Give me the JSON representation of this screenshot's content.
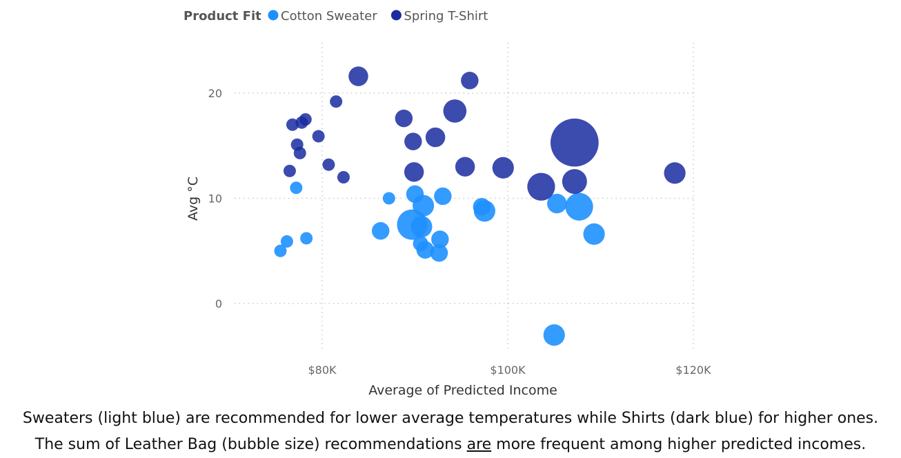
{
  "chart_data": {
    "type": "scatter",
    "legend": {
      "title": "Product Fit",
      "placement": "top-left",
      "entries": [
        {
          "name": "Cotton Sweater",
          "color": "#1E90FF"
        },
        {
          "name": "Spring T-Shirt",
          "color": "#1A2CA0"
        }
      ]
    },
    "xlabel": "Average of Predicted Income",
    "ylabel": "Avg °C",
    "xlim": [
      75000,
      121000
    ],
    "ylim": [
      -4.5,
      24
    ],
    "xticks": [
      80000,
      100000,
      120000
    ],
    "xtick_labels": [
      "$80K",
      "$100K",
      "$120K"
    ],
    "yticks": [
      0,
      10,
      20
    ],
    "ytick_labels": [
      "0",
      "10",
      "20"
    ],
    "grid": true,
    "grid_style": "dotted",
    "series": [
      {
        "name": "Cotton Sweater",
        "color": "#1E90FF",
        "points": [
          {
            "x": 75500,
            "y": 5.0,
            "size": 1
          },
          {
            "x": 76200,
            "y": 5.9,
            "size": 1
          },
          {
            "x": 77200,
            "y": 11.0,
            "size": 1
          },
          {
            "x": 78300,
            "y": 6.2,
            "size": 1
          },
          {
            "x": 86300,
            "y": 6.9,
            "size": 2
          },
          {
            "x": 87200,
            "y": 10.0,
            "size": 1
          },
          {
            "x": 89700,
            "y": 7.5,
            "size": 6
          },
          {
            "x": 90000,
            "y": 10.4,
            "size": 2
          },
          {
            "x": 90900,
            "y": 9.3,
            "size": 3
          },
          {
            "x": 90700,
            "y": 7.3,
            "size": 3
          },
          {
            "x": 90600,
            "y": 5.7,
            "size": 1.5
          },
          {
            "x": 91100,
            "y": 5.1,
            "size": 2
          },
          {
            "x": 92600,
            "y": 4.8,
            "size": 2
          },
          {
            "x": 92700,
            "y": 6.1,
            "size": 2
          },
          {
            "x": 93000,
            "y": 10.2,
            "size": 2
          },
          {
            "x": 97200,
            "y": 9.2,
            "size": 2
          },
          {
            "x": 97500,
            "y": 8.8,
            "size": 3
          },
          {
            "x": 105000,
            "y": -3.0,
            "size": 3
          },
          {
            "x": 105300,
            "y": 9.5,
            "size": 2.5
          },
          {
            "x": 107700,
            "y": 9.2,
            "size": 5
          },
          {
            "x": 109300,
            "y": 6.6,
            "size": 3
          }
        ]
      },
      {
        "name": "Spring T-Shirt",
        "color": "#1A2CA0",
        "points": [
          {
            "x": 76500,
            "y": 12.6,
            "size": 1
          },
          {
            "x": 76800,
            "y": 17.0,
            "size": 1
          },
          {
            "x": 77300,
            "y": 15.1,
            "size": 1
          },
          {
            "x": 77600,
            "y": 14.3,
            "size": 1
          },
          {
            "x": 77800,
            "y": 17.2,
            "size": 1
          },
          {
            "x": 78200,
            "y": 17.5,
            "size": 1
          },
          {
            "x": 79600,
            "y": 15.9,
            "size": 1
          },
          {
            "x": 80700,
            "y": 13.2,
            "size": 1
          },
          {
            "x": 81500,
            "y": 19.2,
            "size": 1
          },
          {
            "x": 82300,
            "y": 12.0,
            "size": 1
          },
          {
            "x": 83900,
            "y": 21.6,
            "size": 2.5
          },
          {
            "x": 88800,
            "y": 17.6,
            "size": 2
          },
          {
            "x": 89800,
            "y": 15.4,
            "size": 2
          },
          {
            "x": 89900,
            "y": 12.5,
            "size": 2.5
          },
          {
            "x": 92200,
            "y": 15.8,
            "size": 2.5
          },
          {
            "x": 94300,
            "y": 18.3,
            "size": 3.5
          },
          {
            "x": 95400,
            "y": 13.0,
            "size": 2.5
          },
          {
            "x": 95900,
            "y": 21.2,
            "size": 2
          },
          {
            "x": 99500,
            "y": 12.9,
            "size": 3
          },
          {
            "x": 103600,
            "y": 11.1,
            "size": 5
          },
          {
            "x": 107200,
            "y": 15.3,
            "size": 15
          },
          {
            "x": 107200,
            "y": 11.6,
            "size": 4
          },
          {
            "x": 118000,
            "y": 12.4,
            "size": 3
          }
        ]
      }
    ]
  },
  "caption": {
    "line1": "Sweaters (light blue) are recommended for lower average temperatures while Shirts (dark blue) for higher ones.",
    "line2_pre": "The sum of Leather Bag (bubble size) recommendations ",
    "line2_underlined": "are",
    "line2_post": " more frequent among higher predicted incomes."
  }
}
